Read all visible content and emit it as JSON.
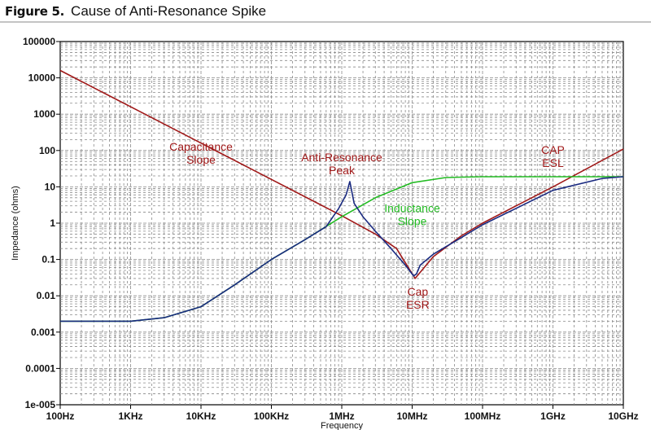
{
  "figure": {
    "number": "Figure 5.",
    "caption": "Cause of Anti-Resonance Spike"
  },
  "chart_data": {
    "type": "line",
    "title": "Cause of Anti-Resonance Spike",
    "xlabel": "Frequency",
    "ylabel": "Impedance (ohms)",
    "x_scale": "log",
    "y_scale": "log",
    "xlim": [
      100,
      10000000000
    ],
    "ylim": [
      1e-05,
      100000
    ],
    "grid": true,
    "x_tick_values": [
      100,
      1000,
      10000,
      100000,
      1000000,
      10000000,
      100000000,
      1000000000,
      10000000000
    ],
    "x_tick_labels": [
      "100Hz",
      "1KHz",
      "10KHz",
      "100KHz",
      "1MHz",
      "10MHz",
      "100MHz",
      "1GHz",
      "10GHz"
    ],
    "y_tick_values": [
      100000,
      10000,
      1000,
      100,
      10,
      1,
      0.1,
      0.01,
      0.001,
      0.0001,
      1e-05
    ],
    "y_tick_labels": [
      "100000",
      "10000",
      "1000",
      "100",
      "10",
      "1",
      "0.1",
      "0.01",
      "0.001",
      "0.0001",
      "1e-005"
    ],
    "series": [
      {
        "color": "#a01818",
        "x": [
          100,
          1000,
          10000,
          100000,
          1000000,
          3000000,
          6000000,
          11000000,
          20000000,
          50000000,
          100000000,
          1000000000,
          10000000000
        ],
        "y": [
          16000,
          1600,
          160,
          16,
          1.6,
          0.5,
          0.2,
          0.03,
          0.12,
          0.45,
          1,
          10,
          110
        ]
      },
      {
        "color": "#22bb22",
        "x": [
          100,
          1000,
          3000,
          10000,
          30000,
          100000,
          300000,
          1000000,
          3000000,
          10000000,
          30000000,
          50000000,
          100000000,
          1000000000,
          10000000000
        ],
        "y": [
          0.002,
          0.002,
          0.0025,
          0.005,
          0.02,
          0.1,
          0.35,
          1.5,
          5,
          13,
          18,
          18.5,
          19,
          19,
          19
        ]
      },
      {
        "color": "#1a2a80",
        "x": [
          100,
          1000,
          3000,
          10000,
          30000,
          100000,
          300000,
          600000,
          900000,
          1150000,
          1300000,
          1500000,
          2000000,
          3000000,
          5000000,
          8000000,
          10500000,
          11500000,
          13000000,
          20000000,
          50000000,
          100000000,
          1000000000,
          5000000000,
          10000000000
        ],
        "y": [
          0.002,
          0.002,
          0.0025,
          0.005,
          0.02,
          0.1,
          0.35,
          0.8,
          2.5,
          6,
          14,
          3.5,
          1.5,
          0.6,
          0.2,
          0.07,
          0.035,
          0.04,
          0.07,
          0.14,
          0.4,
          0.9,
          8,
          17,
          19
        ]
      }
    ],
    "annotations": [
      {
        "lines": [
          "Capacitance",
          "Slope"
        ],
        "color": "#a01818",
        "x": 10000,
        "y": 100
      },
      {
        "lines": [
          "Anti-Resonance",
          "Peak"
        ],
        "color": "#a01818",
        "x": 1000000,
        "y": 50
      },
      {
        "lines": [
          "Inductance",
          "Slope"
        ],
        "color": "#22bb22",
        "x": 10000000,
        "y": 2
      },
      {
        "lines": [
          "Cap",
          "ESR"
        ],
        "color": "#a01818",
        "x": 12000000,
        "y": 0.01
      },
      {
        "lines": [
          "CAP",
          "ESL"
        ],
        "color": "#a01818",
        "x": 1000000000,
        "y": 80
      }
    ]
  }
}
